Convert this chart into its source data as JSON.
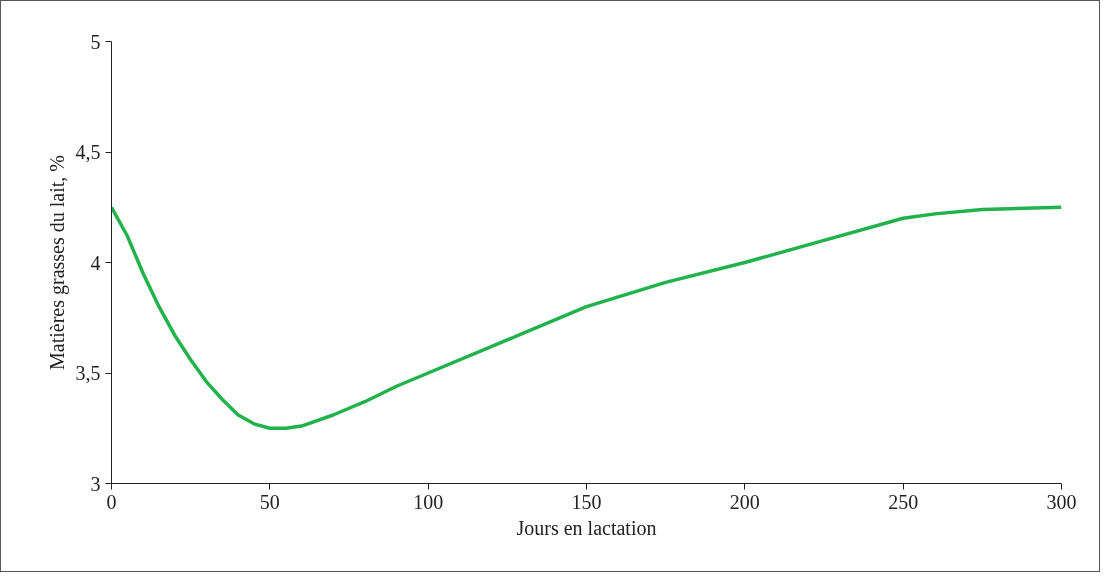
{
  "chart_data": {
    "type": "line",
    "xlabel": "Jours en lactation",
    "ylabel": "Matières grasses du lait, %",
    "x": [
      0,
      5,
      10,
      15,
      20,
      25,
      30,
      35,
      40,
      45,
      50,
      55,
      60,
      70,
      80,
      90,
      100,
      125,
      150,
      175,
      200,
      225,
      250,
      260,
      275,
      300
    ],
    "series": [
      {
        "color": "#21b24b",
        "values": [
          4.25,
          4.12,
          3.95,
          3.8,
          3.67,
          3.56,
          3.46,
          3.38,
          3.31,
          3.27,
          3.25,
          3.25,
          3.26,
          3.31,
          3.37,
          3.44,
          3.5,
          3.65,
          3.8,
          3.91,
          4.0,
          4.1,
          4.2,
          4.22,
          4.24,
          4.25
        ]
      }
    ],
    "xlim": [
      0,
      300
    ],
    "xticks": [
      0,
      50,
      100,
      150,
      200,
      250,
      300
    ],
    "ylim": [
      3,
      5
    ],
    "yticks": [
      3,
      {
        "value": 3.5,
        "label": "3,5"
      },
      4,
      {
        "value": 4.5,
        "label": "4,5"
      },
      5
    ],
    "marker": "none",
    "line_style": "solid"
  }
}
